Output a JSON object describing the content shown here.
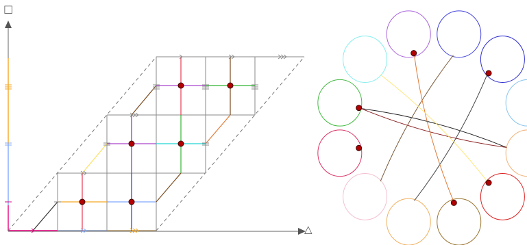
{
  "axes": {
    "vertical_symbol": "□",
    "horizontal_symbol": "△"
  },
  "colors": {
    "grid": "#8a8a8a",
    "dashed": "#777777",
    "vertex": "#b30000",
    "vertex_stroke": "#3a0000"
  },
  "left_panel": {
    "vertices": [
      {
        "row": 0,
        "col": 0
      },
      {
        "row": 0,
        "col": 1
      },
      {
        "row": 1,
        "col": 1
      },
      {
        "row": 1,
        "col": 2
      },
      {
        "row": 2,
        "col": 2
      },
      {
        "row": 2,
        "col": 3
      }
    ],
    "edge_colors": [
      "#e6007e",
      "#7fa8ff",
      "#f5a623",
      "#e8384f",
      "#2233ff",
      "#aa44cc",
      "#32b432",
      "#7a4a1e",
      "#22d4d4",
      "#e07b39",
      "#ffe066"
    ]
  },
  "right_panel": {
    "circles": [
      {
        "color": "#aa66dd",
        "vertex": true
      },
      {
        "color": "#4444dd",
        "vertex": false
      },
      {
        "color": "#2f2fcf",
        "vertex": true
      },
      {
        "color": "#88c4ee",
        "vertex": false
      },
      {
        "color": "#f2b27a",
        "vertex": false
      },
      {
        "color": "#dd2222",
        "vertex": true
      },
      {
        "color": "#9a7430",
        "vertex": true
      },
      {
        "color": "#f0b060",
        "vertex": false
      },
      {
        "color": "#f4c0d0",
        "vertex": false
      },
      {
        "color": "#dd3366",
        "vertex": true
      },
      {
        "color": "#44bb44",
        "vertex": true
      },
      {
        "color": "#88eeee",
        "vertex": false
      }
    ],
    "chords": [
      {
        "from": 4,
        "to": 10,
        "color": "#222222"
      },
      {
        "from": 4,
        "to": 10,
        "color": "#8b2222"
      },
      {
        "from": 1,
        "to": 8,
        "color": "#7a5a3a"
      },
      {
        "from": 2,
        "to": 7,
        "color": "#444444"
      },
      {
        "from": 0,
        "to": 6,
        "color": "#e07b39"
      },
      {
        "from": 11,
        "to": 5,
        "color": "#ffe680"
      }
    ]
  }
}
